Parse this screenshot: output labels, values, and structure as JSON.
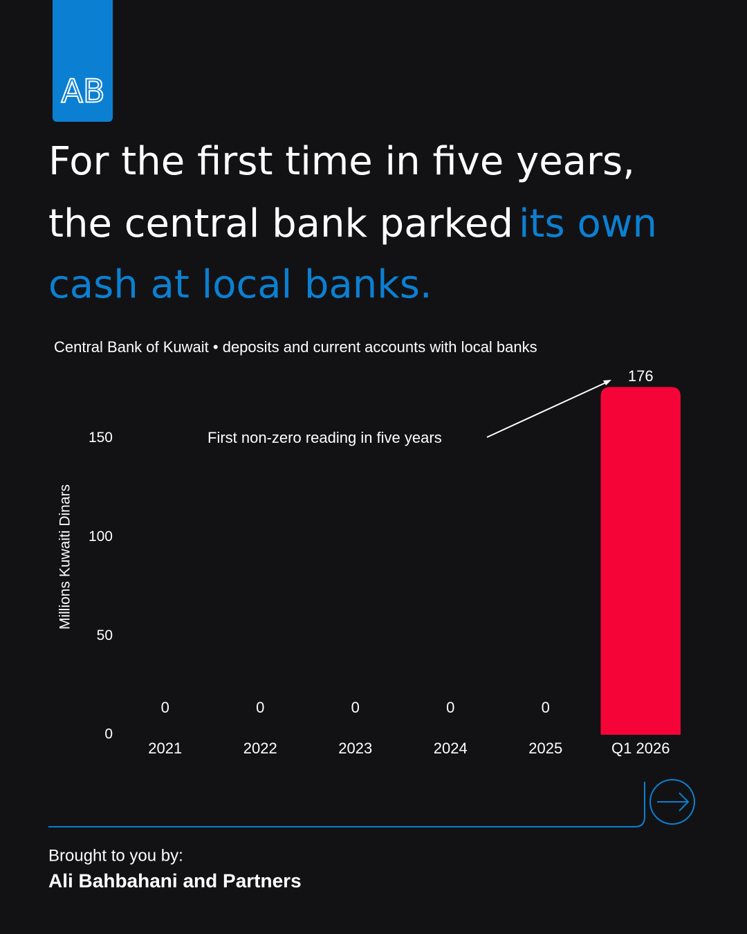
{
  "logo": "AB",
  "chart_data": {
    "type": "bar",
    "title": [
      "For the first time in five years,",
      "the central bank parked",
      "its own",
      "cash at local banks."
    ],
    "subtitle": "Central Bank of Kuwait • deposits and current accounts with local banks",
    "y_label": "Millions Kuwaiti Dinars",
    "annotation": "First non-zero reading in five years",
    "categories": [
      "2021",
      "2022",
      "2023",
      "2024",
      "2025",
      "Q1 2026"
    ],
    "values": [
      0,
      0,
      0,
      0,
      0,
      176
    ],
    "color": "#f50537",
    "ylim": [
      0,
      180
    ],
    "yticks": [
      0,
      50,
      100,
      150
    ],
    "grid": false
  },
  "footer": {
    "intro": "Brought to you by:",
    "name": "Ali Bahbahani and Partners"
  }
}
